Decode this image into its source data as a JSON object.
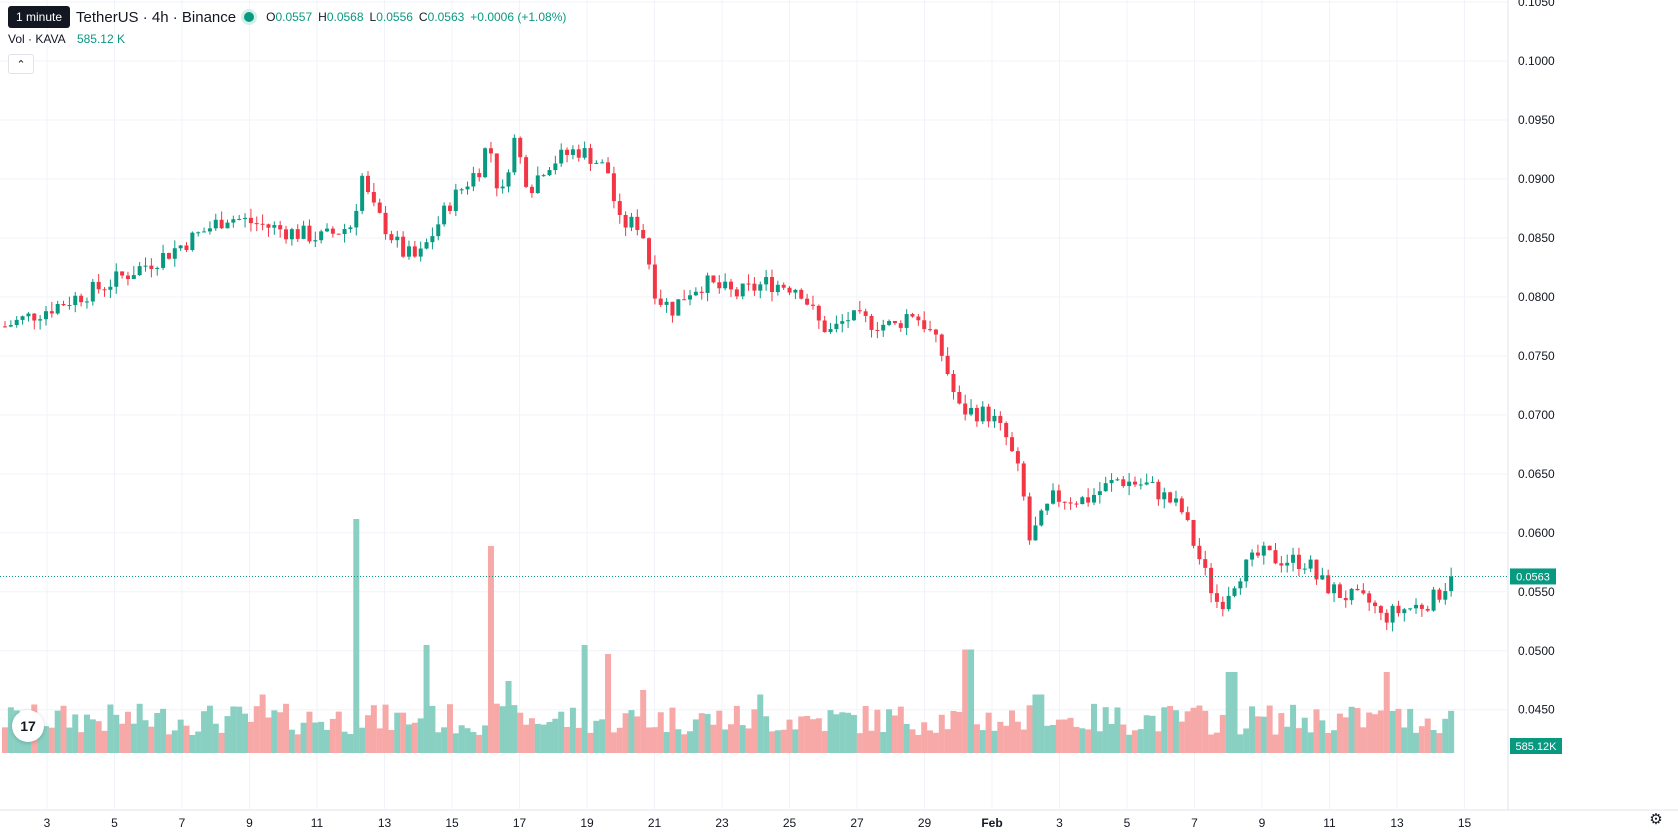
{
  "legend": {
    "tooltip": "1 minute",
    "symbol": "TetherUS · 4h · Binance",
    "o_label": "O",
    "o_val": "0.0557",
    "h_label": "H",
    "h_val": "0.0568",
    "l_label": "L",
    "l_val": "0.0556",
    "c_label": "C",
    "c_val": "0.0563",
    "change": "+0.0006 (+1.08%)"
  },
  "volume_legend": {
    "label": "Vol · KAVA",
    "value": "585.12 K"
  },
  "colors": {
    "up": "#089981",
    "down": "#f23645",
    "up_vol": "#89d0c3",
    "down_vol": "#f7a9a8",
    "grid": "#f0f3fa"
  },
  "chart_data": {
    "type": "candlestick",
    "price_axis_ticks": [
      "0.1050",
      "0.1000",
      "0.0950",
      "0.0900",
      "0.0850",
      "0.0800",
      "0.0750",
      "0.0700",
      "0.0650",
      "0.0600",
      "0.0550",
      "0.0500",
      "0.0450"
    ],
    "ylim": [
      0.0443,
      0.105
    ],
    "x_ticks": [
      "3",
      "5",
      "7",
      "9",
      "11",
      "13",
      "15",
      "17",
      "19",
      "21",
      "23",
      "25",
      "27",
      "29",
      "Feb",
      "3",
      "5",
      "7",
      "9",
      "11",
      "13",
      "15"
    ],
    "last_price_label": "0.0563",
    "last_volume_label": "585.12K",
    "last_price": 0.0563,
    "close_path": [
      [
        0,
        0.0775
      ],
      [
        3,
        0.0808
      ],
      [
        5,
        0.0835
      ],
      [
        7,
        0.0868
      ],
      [
        9,
        0.0855
      ],
      [
        10,
        0.085
      ],
      [
        11,
        0.0862
      ],
      [
        11.15,
        0.091
      ],
      [
        11.5,
        0.0878
      ],
      [
        12.5,
        0.0838
      ],
      [
        13,
        0.0832
      ],
      [
        14,
        0.088
      ],
      [
        15,
        0.0912
      ],
      [
        15.2,
        0.0935
      ],
      [
        15.6,
        0.088
      ],
      [
        16,
        0.0935
      ],
      [
        16.5,
        0.0892
      ],
      [
        17,
        0.0912
      ],
      [
        18,
        0.0925
      ],
      [
        18.5,
        0.0918
      ],
      [
        19,
        0.0905
      ],
      [
        19.3,
        0.0862
      ],
      [
        20,
        0.0862
      ],
      [
        20.5,
        0.08
      ],
      [
        21,
        0.079
      ],
      [
        21.5,
        0.0805
      ],
      [
        22,
        0.0812
      ],
      [
        23,
        0.0802
      ],
      [
        24,
        0.0812
      ],
      [
        25,
        0.0808
      ],
      [
        25.6,
        0.0778
      ],
      [
        26,
        0.077
      ],
      [
        26.5,
        0.0782
      ],
      [
        28,
        0.0775
      ],
      [
        28.5,
        0.0788
      ],
      [
        29,
        0.0775
      ],
      [
        29.5,
        0.075
      ],
      [
        30,
        0.0705
      ],
      [
        31,
        0.07
      ],
      [
        31.5,
        0.068
      ],
      [
        32,
        0.0642
      ],
      [
        32.2,
        0.0592
      ],
      [
        33,
        0.063
      ],
      [
        34,
        0.0628
      ],
      [
        35,
        0.0645
      ],
      [
        36,
        0.064
      ],
      [
        37,
        0.062
      ],
      [
        37.8,
        0.0562
      ],
      [
        38.2,
        0.0538
      ],
      [
        38.8,
        0.0565
      ],
      [
        39.5,
        0.0582
      ],
      [
        40,
        0.0578
      ],
      [
        41,
        0.0575
      ],
      [
        41.3,
        0.056
      ],
      [
        42,
        0.0548
      ],
      [
        43,
        0.054
      ],
      [
        43.3,
        0.0528
      ],
      [
        44,
        0.0535
      ],
      [
        44.5,
        0.0538
      ],
      [
        45,
        0.0545
      ],
      [
        45.3,
        0.0555
      ],
      [
        45.5,
        0.0563
      ]
    ],
    "volume_spikes": [
      [
        11.1,
        5.2
      ],
      [
        15.3,
        4.6
      ],
      [
        13.3,
        2.4
      ],
      [
        18.3,
        2.4
      ],
      [
        19.0,
        2.2
      ],
      [
        30.3,
        2.3
      ],
      [
        38.6,
        1.8
      ],
      [
        43.5,
        1.8
      ],
      [
        8.1,
        1.3
      ],
      [
        15.8,
        1.6
      ],
      [
        20.1,
        1.4
      ],
      [
        23.7,
        1.3
      ],
      [
        32.5,
        1.3
      ]
    ],
    "volume_ylim_max": 4.0
  }
}
